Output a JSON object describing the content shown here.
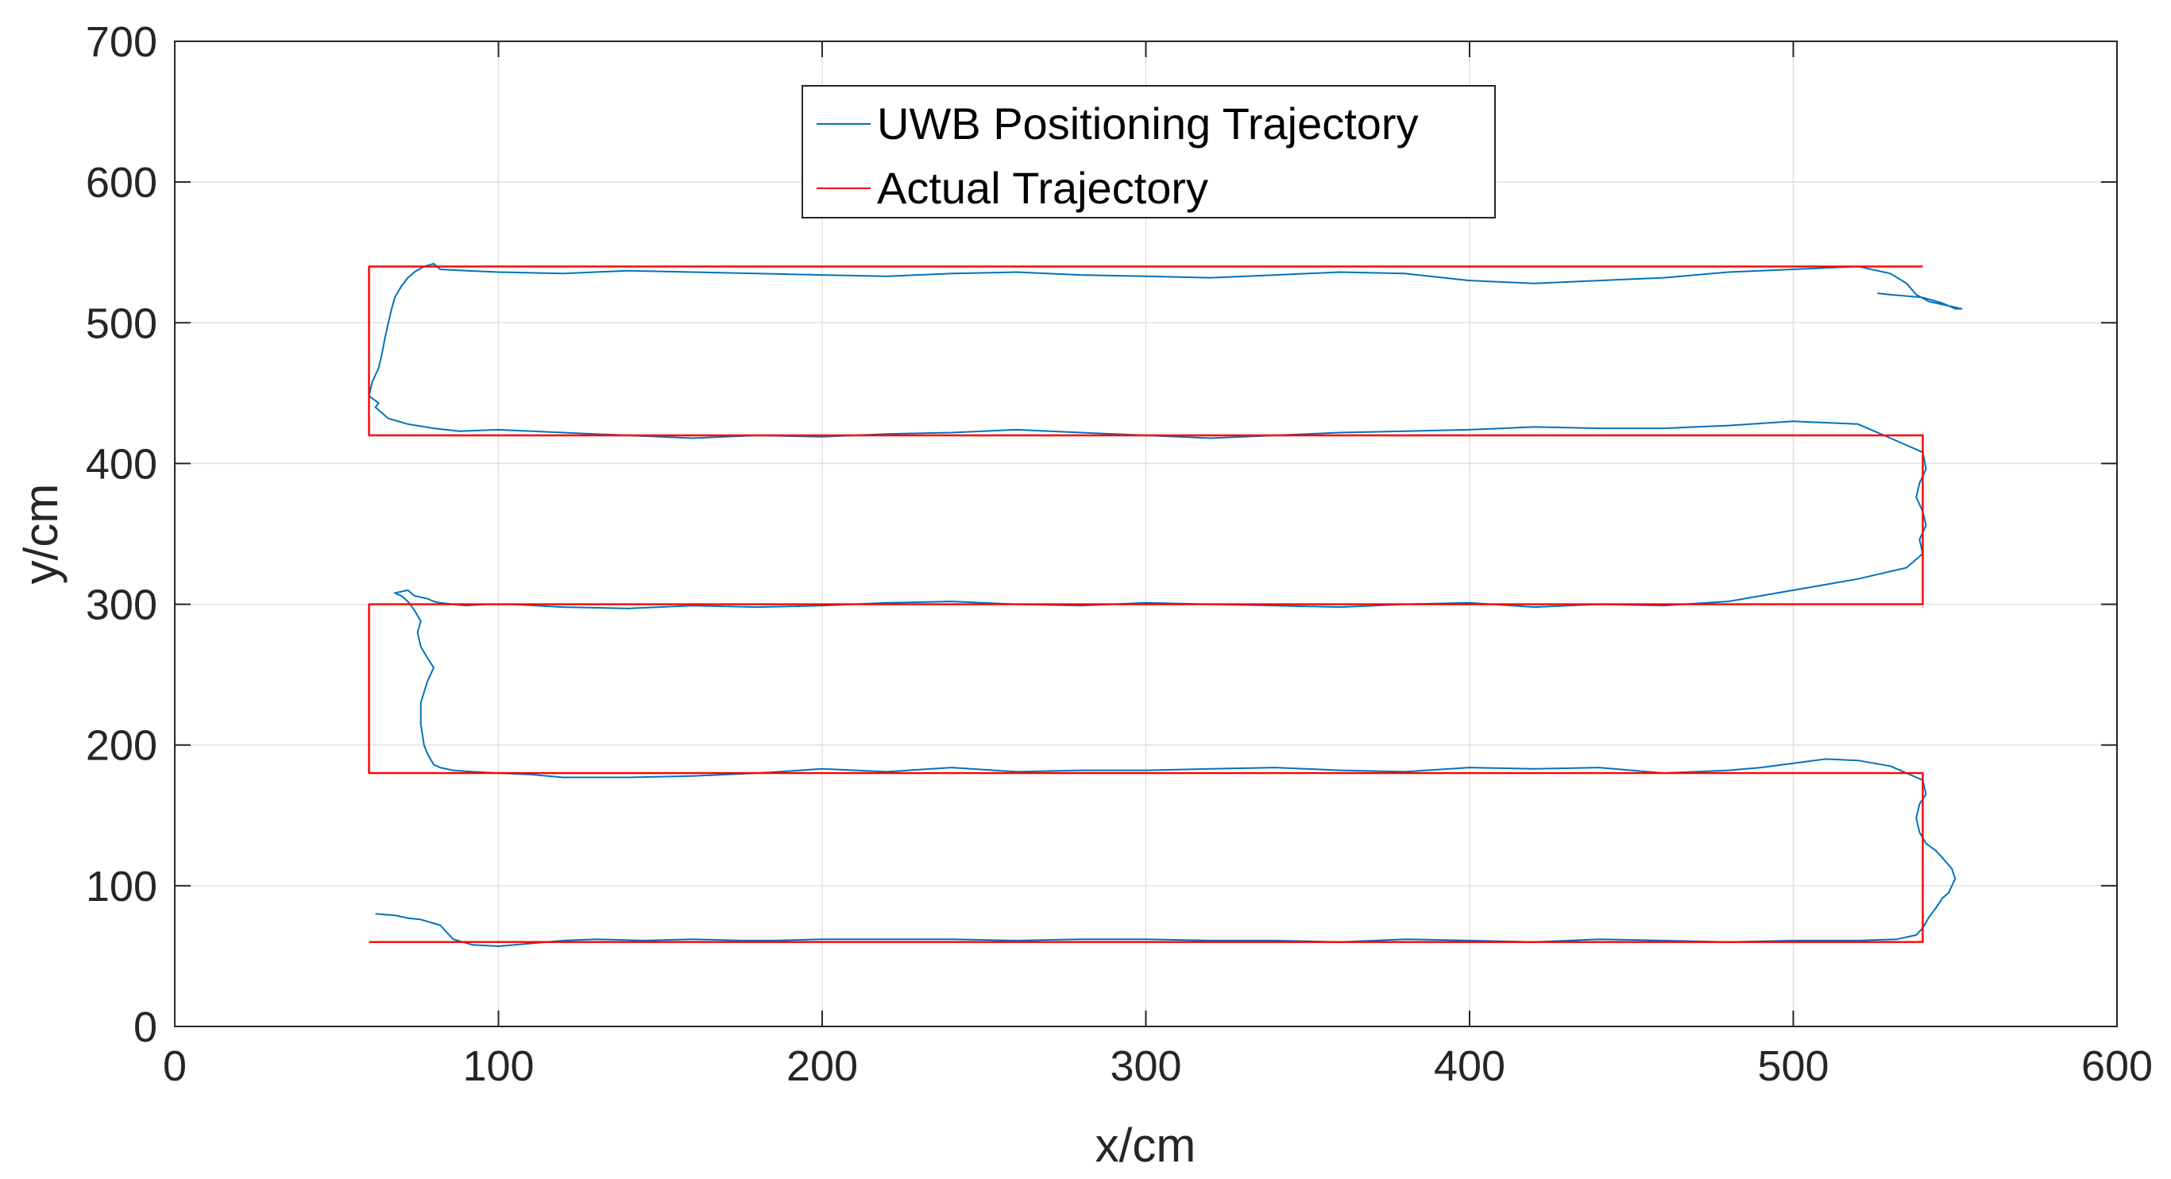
{
  "chart_data": {
    "type": "line",
    "title": "",
    "xlabel": "x/cm",
    "ylabel": "y/cm",
    "xlim": [
      0,
      600
    ],
    "ylim": [
      0,
      700
    ],
    "xticks": [
      0,
      100,
      200,
      300,
      400,
      500,
      600
    ],
    "yticks": [
      0,
      100,
      200,
      300,
      400,
      500,
      600,
      700
    ],
    "grid": true,
    "legend_position": "top-center",
    "series": [
      {
        "name": "UWB Positioning Trajectory",
        "color": "#0072BD",
        "x": [
          62,
          68,
          72,
          76,
          82,
          86,
          92,
          100,
          110,
          120,
          130,
          145,
          160,
          175,
          185,
          200,
          220,
          240,
          260,
          280,
          300,
          320,
          340,
          360,
          380,
          400,
          420,
          440,
          460,
          480,
          500,
          520,
          532,
          538,
          540,
          542,
          544,
          546,
          548,
          550,
          549,
          546,
          544,
          541,
          539,
          538,
          539,
          541,
          540,
          530,
          520,
          510,
          500,
          490,
          480,
          460,
          440,
          420,
          400,
          380,
          360,
          340,
          320,
          300,
          280,
          260,
          240,
          220,
          200,
          180,
          160,
          140,
          120,
          110,
          100,
          92,
          86,
          82,
          80,
          79,
          78,
          77,
          76,
          76,
          78,
          80,
          78,
          76,
          75,
          76,
          74,
          72,
          70,
          68,
          72,
          74,
          76,
          78,
          80,
          82,
          86,
          90,
          96,
          104,
          120,
          140,
          160,
          180,
          200,
          220,
          240,
          260,
          280,
          300,
          320,
          340,
          360,
          380,
          400,
          420,
          440,
          460,
          480,
          500,
          520,
          535,
          540,
          539,
          541,
          540,
          538,
          539,
          541,
          540,
          530,
          520,
          500,
          480,
          460,
          440,
          420,
          400,
          380,
          360,
          340,
          320,
          300,
          280,
          260,
          240,
          220,
          200,
          180,
          160,
          140,
          120,
          100,
          88,
          80,
          72,
          66,
          64,
          62,
          63,
          60,
          61,
          63,
          64,
          65,
          66,
          67,
          68,
          70,
          72,
          74,
          77,
          80,
          82,
          90,
          100,
          120,
          140,
          160,
          180,
          200,
          220,
          240,
          260,
          280,
          300,
          320,
          340,
          360,
          380,
          400,
          420,
          440,
          460,
          480,
          500,
          520,
          530,
          535,
          538,
          542,
          548,
          552,
          550,
          546,
          540,
          530,
          526
        ],
        "y": [
          80,
          79,
          77,
          76,
          72,
          62,
          58,
          57,
          59,
          61,
          62,
          61,
          62,
          61,
          61,
          62,
          62,
          62,
          61,
          62,
          62,
          61,
          61,
          60,
          62,
          61,
          60,
          62,
          61,
          60,
          61,
          61,
          62,
          65,
          70,
          78,
          84,
          91,
          95,
          105,
          112,
          120,
          125,
          130,
          138,
          148,
          158,
          165,
          175,
          185,
          189,
          190,
          187,
          184,
          182,
          180,
          184,
          183,
          184,
          181,
          182,
          184,
          183,
          182,
          182,
          181,
          184,
          181,
          183,
          180,
          178,
          177,
          177,
          179,
          180,
          181,
          182,
          184,
          186,
          190,
          194,
          200,
          215,
          230,
          245,
          255,
          262,
          270,
          280,
          288,
          296,
          302,
          306,
          308,
          310,
          306,
          305,
          304,
          302,
          301,
          300,
          299,
          300,
          300,
          298,
          297,
          299,
          298,
          299,
          301,
          302,
          300,
          299,
          301,
          300,
          299,
          298,
          300,
          301,
          298,
          300,
          299,
          302,
          310,
          318,
          326,
          336,
          346,
          356,
          366,
          376,
          386,
          396,
          408,
          418,
          428,
          430,
          427,
          425,
          425,
          426,
          424,
          423,
          422,
          420,
          418,
          420,
          422,
          424,
          422,
          421,
          419,
          420,
          418,
          420,
          422,
          424,
          423,
          425,
          428,
          432,
          436,
          440,
          443,
          448,
          458,
          468,
          478,
          490,
          500,
          510,
          518,
          526,
          532,
          536,
          540,
          542,
          538,
          537,
          536,
          535,
          537,
          536,
          535,
          534,
          533,
          535,
          536,
          534,
          533,
          532,
          534,
          536,
          535,
          530,
          528,
          530,
          532,
          536,
          538,
          540,
          535,
          528,
          520,
          515,
          512,
          510,
          510,
          514,
          518,
          520,
          521
        ]
      },
      {
        "name": "Actual Trajectory",
        "color": "#FF0000",
        "x": [
          60,
          540,
          540,
          60,
          60,
          540,
          540,
          60,
          60,
          540
        ],
        "y": [
          60,
          60,
          180,
          180,
          300,
          300,
          420,
          420,
          540,
          540
        ]
      }
    ]
  }
}
